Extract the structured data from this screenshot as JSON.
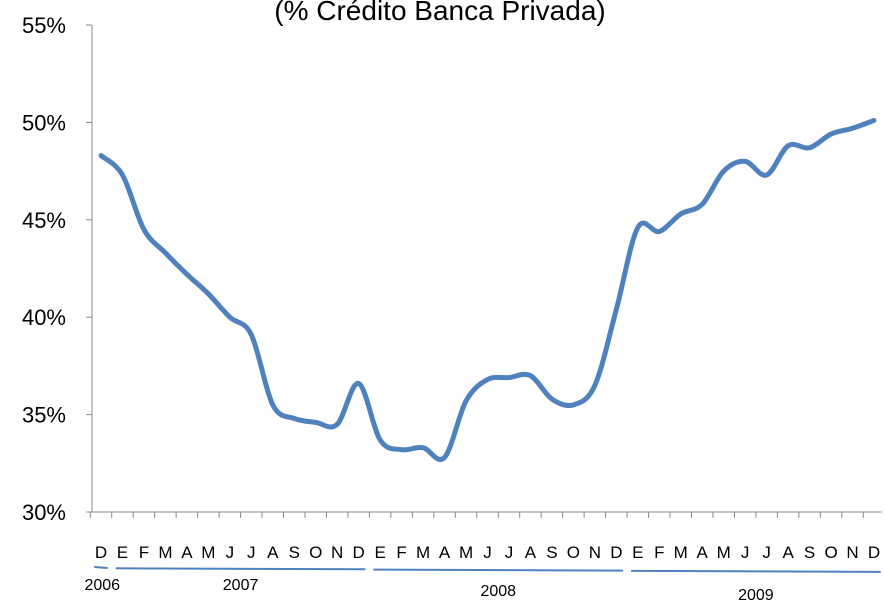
{
  "chart_data": {
    "type": "line",
    "title": "(% Crédito Banca Privada)",
    "categories": [
      "D",
      "E",
      "F",
      "M",
      "A",
      "M",
      "J",
      "J",
      "A",
      "S",
      "O",
      "N",
      "D",
      "E",
      "F",
      "M",
      "A",
      "M",
      "J",
      "J",
      "A",
      "S",
      "O",
      "N",
      "D",
      "E",
      "F",
      "M",
      "A",
      "M",
      "J",
      "J",
      "A",
      "S",
      "O",
      "N",
      "D"
    ],
    "years": [
      "2006",
      "2007",
      "2008",
      "2009"
    ],
    "series": [
      {
        "name": "Crédito Banca Privada",
        "color": "#4f81bd",
        "values": [
          48.3,
          47.3,
          44.5,
          43.3,
          42.2,
          41.2,
          40.0,
          39.1,
          35.5,
          34.8,
          34.6,
          34.5,
          36.6,
          33.7,
          33.2,
          33.3,
          32.8,
          35.7,
          36.8,
          36.9,
          37.0,
          35.8,
          35.5,
          36.5,
          40.4,
          44.6,
          44.4,
          45.3,
          45.8,
          47.5,
          48.0,
          47.3,
          48.8,
          48.7,
          49.4,
          49.7,
          50.1
        ]
      }
    ],
    "ylim": [
      30,
      55
    ],
    "yticks": [
      {
        "value": 30,
        "label": "30%"
      },
      {
        "value": 35,
        "label": "35%"
      },
      {
        "value": 40,
        "label": "40%"
      },
      {
        "value": 45,
        "label": "45%"
      },
      {
        "value": 50,
        "label": "50%"
      },
      {
        "value": 55,
        "label": "55%"
      }
    ]
  }
}
